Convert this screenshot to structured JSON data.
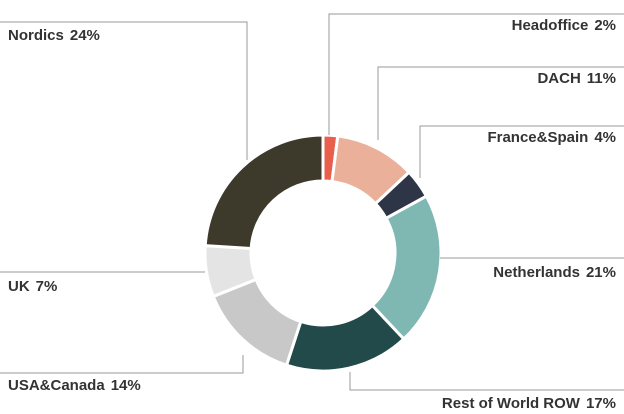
{
  "chart_data": {
    "type": "donut",
    "categories": [
      "Headoffice",
      "DACH",
      "France&Spain",
      "Netherlands",
      "Rest of World ROW",
      "USA&Canada",
      "UK",
      "Nordics"
    ],
    "values": [
      2,
      11,
      4,
      21,
      17,
      14,
      7,
      24
    ],
    "value_labels": [
      "2%",
      "11%",
      "4%",
      "21%",
      "17%",
      "14%",
      "7%",
      "24%"
    ],
    "colors": [
      "#e8604c",
      "#ebb09a",
      "#2e3547",
      "#7fb7b2",
      "#234a4a",
      "#c8c8c8",
      "#e4e4e4",
      "#3d3a2b"
    ]
  }
}
